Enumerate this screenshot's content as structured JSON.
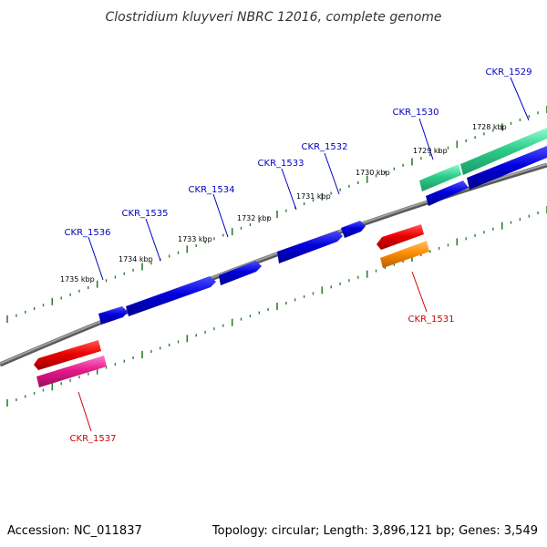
{
  "title": "Clostridium kluyveri NBRC 12016, complete genome",
  "footer": {
    "accession": "Accession: NC_011837",
    "summary": "Topology: circular; Length: 3,896,121 bp; Genes: 3,549"
  },
  "colors": {
    "backbone": "#808080",
    "tick": "#2e7d32",
    "forward_label": "#0000c0",
    "reverse_label": "#d00000"
  },
  "scale_labels": [
    "1728 kbp",
    "1729 kbp",
    "1730 kbp",
    "1731 kbp",
    "1732 kbp",
    "1733 kbp",
    "1734 kbp",
    "1735 kbp"
  ],
  "genes": [
    {
      "name": "CKR_1529",
      "strand": "forward",
      "color": "#2ecc8a"
    },
    {
      "name": "CKR_1530",
      "strand": "forward",
      "color": "#0000dd"
    },
    {
      "name": "CKR_1531",
      "strand": "reverse",
      "color": "#ff8c00"
    },
    {
      "name": "CKR_1532",
      "strand": "forward",
      "color": "#0000dd"
    },
    {
      "name": "CKR_1533",
      "strand": "forward",
      "color": "#0000dd"
    },
    {
      "name": "CKR_1534",
      "strand": "forward",
      "color": "#0000dd"
    },
    {
      "name": "CKR_1535",
      "strand": "forward",
      "color": "#0000dd"
    },
    {
      "name": "CKR_1536",
      "strand": "forward",
      "color": "#0000dd"
    },
    {
      "name": "CKR_1537",
      "strand": "reverse",
      "color": "#e6198c"
    }
  ]
}
